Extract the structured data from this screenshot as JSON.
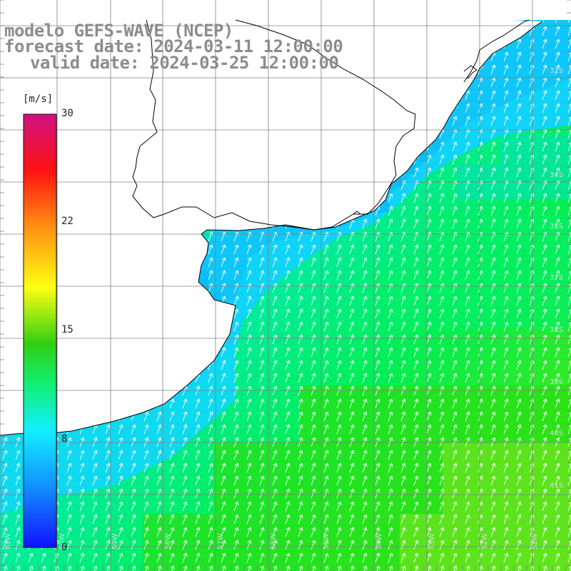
{
  "title": {
    "model": "modelo GEFS-WAVE (NCEP)",
    "forecast": "forecast date: 2024-03-11 12:00:00",
    "valid": "valid date: 2024-03-25 12:00:00"
  },
  "colorbar": {
    "unit": "[m/s]",
    "ticks": [
      "30",
      "22",
      "15",
      "8",
      "0"
    ],
    "min": 0,
    "max": 30,
    "colors": [
      "#0000ff",
      "#0088ff",
      "#00eeff",
      "#00ee66",
      "#22cc00",
      "#ffff00",
      "#ff8800",
      "#ff0000",
      "#cc0077"
    ]
  },
  "map": {
    "lat_labels": [
      "32S",
      "34S",
      "35S",
      "37S",
      "38S",
      "39S",
      "40S",
      "41S"
    ],
    "lon_labels": [
      "61W",
      "60W",
      "59W",
      "58W",
      "57W",
      "56W",
      "55W",
      "54W",
      "53W",
      "52W",
      "51W"
    ],
    "ocean_colors": {
      "near_coast": "#0fd7f7",
      "mid": "#00f08c",
      "far": "#33e617",
      "southeast": "#7dea1e"
    },
    "wind_direction": "towards north-northeast"
  }
}
